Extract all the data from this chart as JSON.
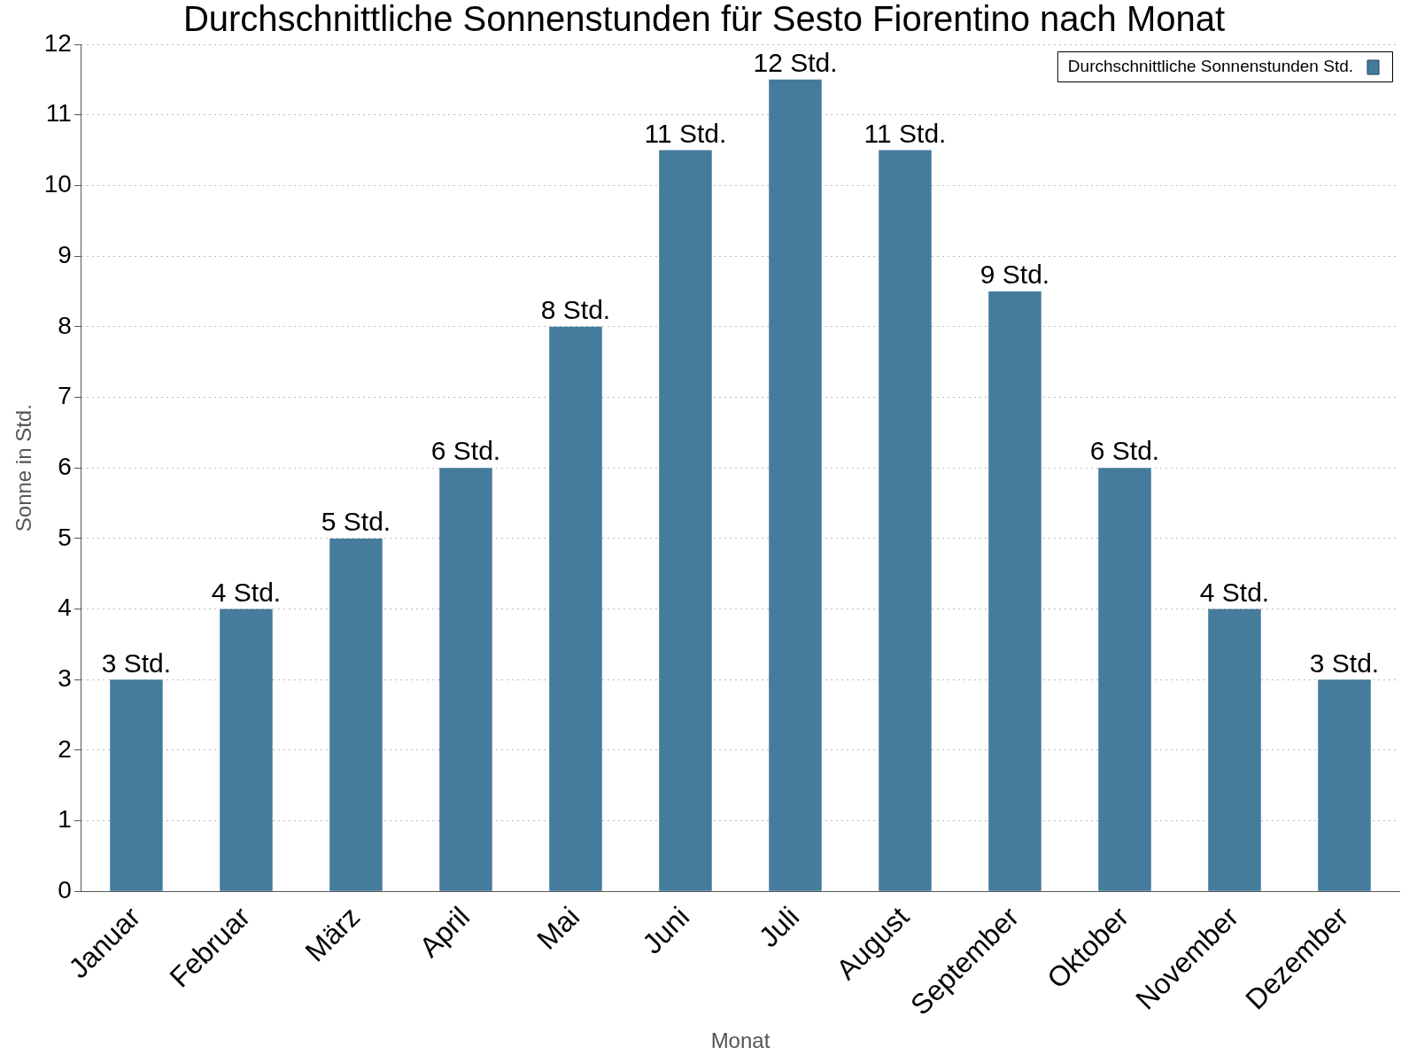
{
  "chart_data": {
    "type": "bar",
    "title": "Durchschnittliche Sonnenstunden für Sesto Fiorentino nach Monat",
    "xlabel": "Monat",
    "ylabel": "Sonne in Std.",
    "categories": [
      "Januar",
      "Februar",
      "März",
      "April",
      "Mai",
      "Juni",
      "Juli",
      "August",
      "September",
      "Oktober",
      "November",
      "Dezember"
    ],
    "series": [
      {
        "name": "Durchschnittliche Sonnenstunden Std.",
        "color": "#457b9d",
        "values": [
          3,
          4,
          5,
          6,
          8,
          10.5,
          11.5,
          10.5,
          8.5,
          6,
          4,
          3
        ],
        "value_labels": [
          "3 Std.",
          "4 Std.",
          "5 Std.",
          "6 Std.",
          "8 Std.",
          "11 Std.",
          "12 Std.",
          "11 Std.",
          "9 Std.",
          "6 Std.",
          "4 Std.",
          "3 Std."
        ]
      }
    ],
    "ylim": [
      0,
      12
    ],
    "yticks": [
      0,
      1,
      2,
      3,
      4,
      5,
      6,
      7,
      8,
      9,
      10,
      11,
      12
    ],
    "grid": "y",
    "legend": "top right"
  }
}
